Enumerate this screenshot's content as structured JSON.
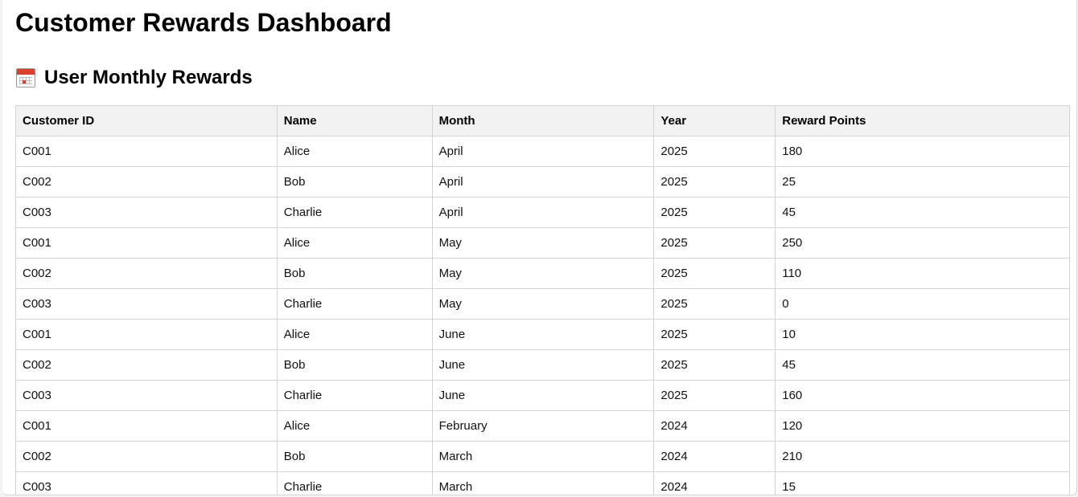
{
  "page": {
    "title": "Customer Rewards Dashboard"
  },
  "section": {
    "title": "User Monthly Rewards",
    "icon": "calendar-icon"
  },
  "table": {
    "columns": [
      "Customer ID",
      "Name",
      "Month",
      "Year",
      "Reward Points"
    ],
    "rows": [
      [
        "C001",
        "Alice",
        "April",
        "2025",
        "180"
      ],
      [
        "C002",
        "Bob",
        "April",
        "2025",
        "25"
      ],
      [
        "C003",
        "Charlie",
        "April",
        "2025",
        "45"
      ],
      [
        "C001",
        "Alice",
        "May",
        "2025",
        "250"
      ],
      [
        "C002",
        "Bob",
        "May",
        "2025",
        "110"
      ],
      [
        "C003",
        "Charlie",
        "May",
        "2025",
        "0"
      ],
      [
        "C001",
        "Alice",
        "June",
        "2025",
        "10"
      ],
      [
        "C002",
        "Bob",
        "June",
        "2025",
        "45"
      ],
      [
        "C003",
        "Charlie",
        "June",
        "2025",
        "160"
      ],
      [
        "C001",
        "Alice",
        "February",
        "2024",
        "120"
      ],
      [
        "C002",
        "Bob",
        "March",
        "2024",
        "210"
      ],
      [
        "C003",
        "Charlie",
        "March",
        "2024",
        "15"
      ]
    ]
  },
  "colors": {
    "header_bg": "#f2f2f2",
    "border": "#d4d4d4",
    "calendar_accent": "#d9402f"
  }
}
